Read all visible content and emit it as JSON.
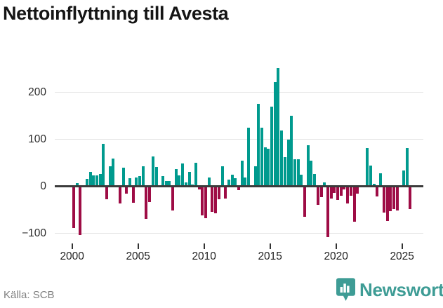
{
  "title": "Nettoinflyttning till Avesta",
  "source": "Källa: SCB",
  "branding": {
    "logo_text": "Newsworthy",
    "logo_icon": "bar-chart-badge-icon"
  },
  "colors": {
    "positive": "#009a8e",
    "negative": "#9e0c45",
    "zero_line": "#3b3b3b",
    "grid": "#e3e3e3",
    "brand": "#3e9c95"
  },
  "chart_data": {
    "type": "bar",
    "frequency": "quarterly",
    "start_period": "2000Q1",
    "end_period": "2025Q3",
    "x_tick_years": [
      2000,
      2005,
      2010,
      2015,
      2020,
      2025
    ],
    "x_tick_labels": [
      "2000",
      "2005",
      "2010",
      "2015",
      "2020",
      "2025"
    ],
    "y_ticks": [
      200,
      100,
      0,
      -100
    ],
    "y_tick_labels": [
      "200",
      "100",
      "0",
      "−100"
    ],
    "ylim": [
      -130,
      270
    ],
    "grid": true,
    "legend": false,
    "values": [
      -88,
      7,
      -103,
      0,
      15,
      30,
      23,
      23,
      26,
      90,
      -28,
      43,
      59,
      0,
      -36,
      39,
      -15,
      17,
      -35,
      19,
      21,
      42,
      -70,
      -34,
      64,
      41,
      0,
      21,
      12,
      12,
      -51,
      36,
      23,
      48,
      9,
      31,
      4,
      50,
      -6,
      -62,
      -68,
      19,
      -55,
      -57,
      -28,
      43,
      -26,
      14,
      25,
      17,
      -8,
      55,
      19,
      125,
      0,
      42,
      175,
      125,
      83,
      80,
      170,
      222,
      252,
      118,
      62,
      100,
      150,
      58,
      58,
      25,
      -65,
      88,
      55,
      26,
      -40,
      -23,
      9,
      -108,
      -26,
      -14,
      -29,
      -20,
      -6,
      -37,
      -20,
      -75,
      -15,
      0,
      0,
      81,
      44,
      6,
      -22,
      28,
      -56,
      -74,
      -53,
      -49,
      -51,
      0,
      33,
      82,
      -48
    ]
  }
}
